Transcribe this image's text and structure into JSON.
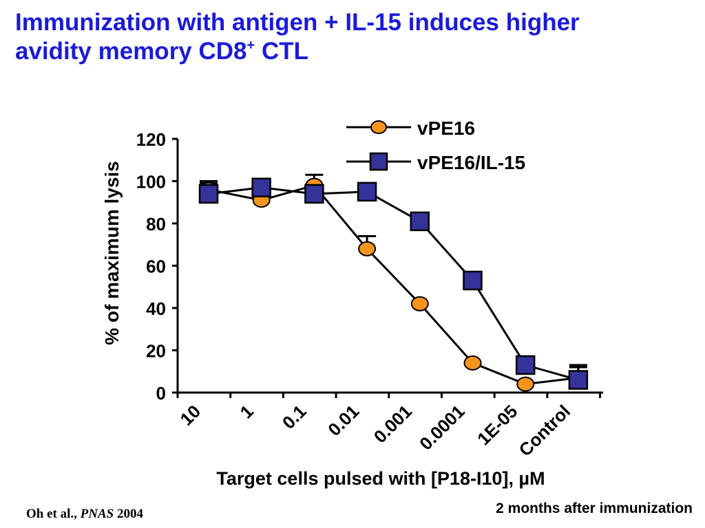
{
  "title": {
    "line1": "Immunization with antigen + IL-15 induces higher",
    "line2_text": "avidity memory CD8",
    "line2_sup": "+",
    "line2_end": " CTL"
  },
  "citation": {
    "authors": "Oh et al., ",
    "journal": "PNAS",
    "year": " 2004"
  },
  "footnote": "2 months after immunization",
  "chart_data": {
    "type": "line",
    "categories": [
      "10",
      "1",
      "0.1",
      "0.01",
      "0.001",
      "0.0001",
      "1E-05",
      "Control"
    ],
    "ylabel": "% of maximum lysis",
    "xlabel": "Target cells pulsed with [P18-I10], µM",
    "ylim": [
      0,
      120
    ],
    "yticks": [
      0,
      20,
      40,
      60,
      80,
      100,
      120
    ],
    "legend_position": "top-right",
    "series": [
      {
        "name": "vPE16",
        "marker": "circle",
        "color": "#f7941d",
        "values": [
          96,
          91,
          98,
          68,
          42,
          14,
          4,
          7
        ],
        "error": [
          3,
          0,
          5,
          6,
          0,
          0,
          0,
          6
        ]
      },
      {
        "name": "vPE16/IL-15",
        "marker": "square",
        "color": "#33339a",
        "values": [
          94,
          97,
          94,
          95,
          81,
          53,
          13,
          6
        ],
        "error": [
          6,
          0,
          0,
          4,
          0,
          4,
          0,
          6
        ]
      }
    ]
  }
}
